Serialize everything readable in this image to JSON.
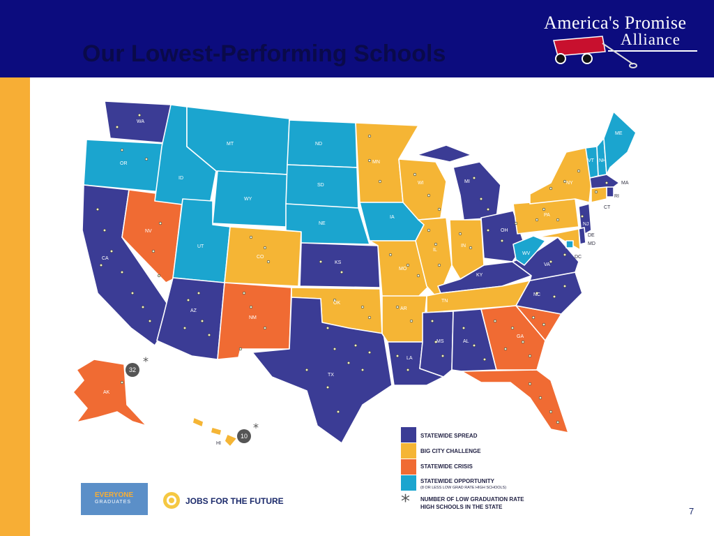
{
  "slide": {
    "title": "Our Lowest-Performing Schools",
    "page_number": "7"
  },
  "logo": {
    "line1": "America's Promise",
    "line2": "Alliance"
  },
  "colors": {
    "header_bg": "#0c0c7e",
    "statewide_spread": "#3b3c95",
    "big_city_challenge": "#f5b535",
    "statewide_crisis": "#f06b33",
    "statewide_opportunity": "#1ba5cf",
    "sidebar": "#f7ae35"
  },
  "map": {
    "states": [
      {
        "abbr": "WA",
        "category": "statewide_spread"
      },
      {
        "abbr": "OR",
        "category": "statewide_opportunity"
      },
      {
        "abbr": "CA",
        "category": "statewide_spread"
      },
      {
        "abbr": "NV",
        "category": "statewide_crisis"
      },
      {
        "abbr": "ID",
        "category": "statewide_opportunity"
      },
      {
        "abbr": "MT",
        "category": "statewide_opportunity"
      },
      {
        "abbr": "WY",
        "category": "statewide_opportunity"
      },
      {
        "abbr": "UT",
        "category": "statewide_opportunity"
      },
      {
        "abbr": "AZ",
        "category": "statewide_spread"
      },
      {
        "abbr": "CO",
        "category": "big_city_challenge"
      },
      {
        "abbr": "NM",
        "category": "statewide_crisis"
      },
      {
        "abbr": "ND",
        "category": "statewide_opportunity"
      },
      {
        "abbr": "SD",
        "category": "statewide_opportunity"
      },
      {
        "abbr": "NE",
        "category": "statewide_opportunity"
      },
      {
        "abbr": "KS",
        "category": "statewide_spread"
      },
      {
        "abbr": "OK",
        "category": "big_city_challenge"
      },
      {
        "abbr": "TX",
        "category": "statewide_spread"
      },
      {
        "abbr": "MN",
        "category": "big_city_challenge"
      },
      {
        "abbr": "IA",
        "category": "statewide_opportunity"
      },
      {
        "abbr": "MO",
        "category": "big_city_challenge"
      },
      {
        "abbr": "AR",
        "category": "big_city_challenge"
      },
      {
        "abbr": "LA",
        "category": "statewide_spread"
      },
      {
        "abbr": "WI",
        "category": "big_city_challenge"
      },
      {
        "abbr": "IL",
        "category": "big_city_challenge"
      },
      {
        "abbr": "MI",
        "category": "statewide_spread"
      },
      {
        "abbr": "IN",
        "category": "big_city_challenge"
      },
      {
        "abbr": "OH",
        "category": "statewide_spread"
      },
      {
        "abbr": "KY",
        "category": "statewide_spread"
      },
      {
        "abbr": "TN",
        "category": "big_city_challenge"
      },
      {
        "abbr": "MS",
        "category": "statewide_spread"
      },
      {
        "abbr": "AL",
        "category": "statewide_spread"
      },
      {
        "abbr": "GA",
        "category": "statewide_crisis"
      },
      {
        "abbr": "FL",
        "category": "statewide_crisis"
      },
      {
        "abbr": "SC",
        "category": "statewide_crisis"
      },
      {
        "abbr": "NC",
        "category": "statewide_spread"
      },
      {
        "abbr": "VA",
        "category": "statewide_spread"
      },
      {
        "abbr": "WV",
        "category": "statewide_opportunity"
      },
      {
        "abbr": "PA",
        "category": "big_city_challenge"
      },
      {
        "abbr": "NY",
        "category": "big_city_challenge"
      },
      {
        "abbr": "VT",
        "category": "statewide_opportunity"
      },
      {
        "abbr": "NH",
        "category": "statewide_opportunity"
      },
      {
        "abbr": "ME",
        "category": "statewide_opportunity"
      },
      {
        "abbr": "MA",
        "category": "statewide_spread"
      },
      {
        "abbr": "RI",
        "category": "statewide_spread"
      },
      {
        "abbr": "CT",
        "category": "big_city_challenge"
      },
      {
        "abbr": "NJ",
        "category": "statewide_spread"
      },
      {
        "abbr": "DE",
        "category": "statewide_spread"
      },
      {
        "abbr": "MD",
        "category": "big_city_challenge"
      },
      {
        "abbr": "DC",
        "category": "statewide_opportunity"
      },
      {
        "abbr": "AK",
        "category": "statewide_crisis"
      },
      {
        "abbr": "HI",
        "category": "big_city_challenge"
      }
    ],
    "callouts": [
      {
        "state": "AK",
        "count": "32"
      },
      {
        "state": "HI",
        "count": "10"
      }
    ]
  },
  "legend": {
    "items": [
      {
        "key": "statewide_spread",
        "label": "STATEWIDE SPREAD",
        "sub": ""
      },
      {
        "key": "big_city_challenge",
        "label": "BIG CITY CHALLENGE",
        "sub": ""
      },
      {
        "key": "statewide_crisis",
        "label": "STATEWIDE CRISIS",
        "sub": ""
      },
      {
        "key": "statewide_opportunity",
        "label": "STATEWIDE OPPORTUNITY",
        "sub": "(8 OR LESS LOW GRAD RATE HIGH SCHOOLS)"
      }
    ],
    "star_label_line1": "NUMBER OF LOW GRADUATION RATE",
    "star_label_line2": "HIGH SCHOOLS IN THE STATE"
  },
  "partners": {
    "everyone_top": "EVERYONE",
    "everyone_bottom": "GRADUATES",
    "jff": "JOBS FOR THE FUTURE"
  }
}
